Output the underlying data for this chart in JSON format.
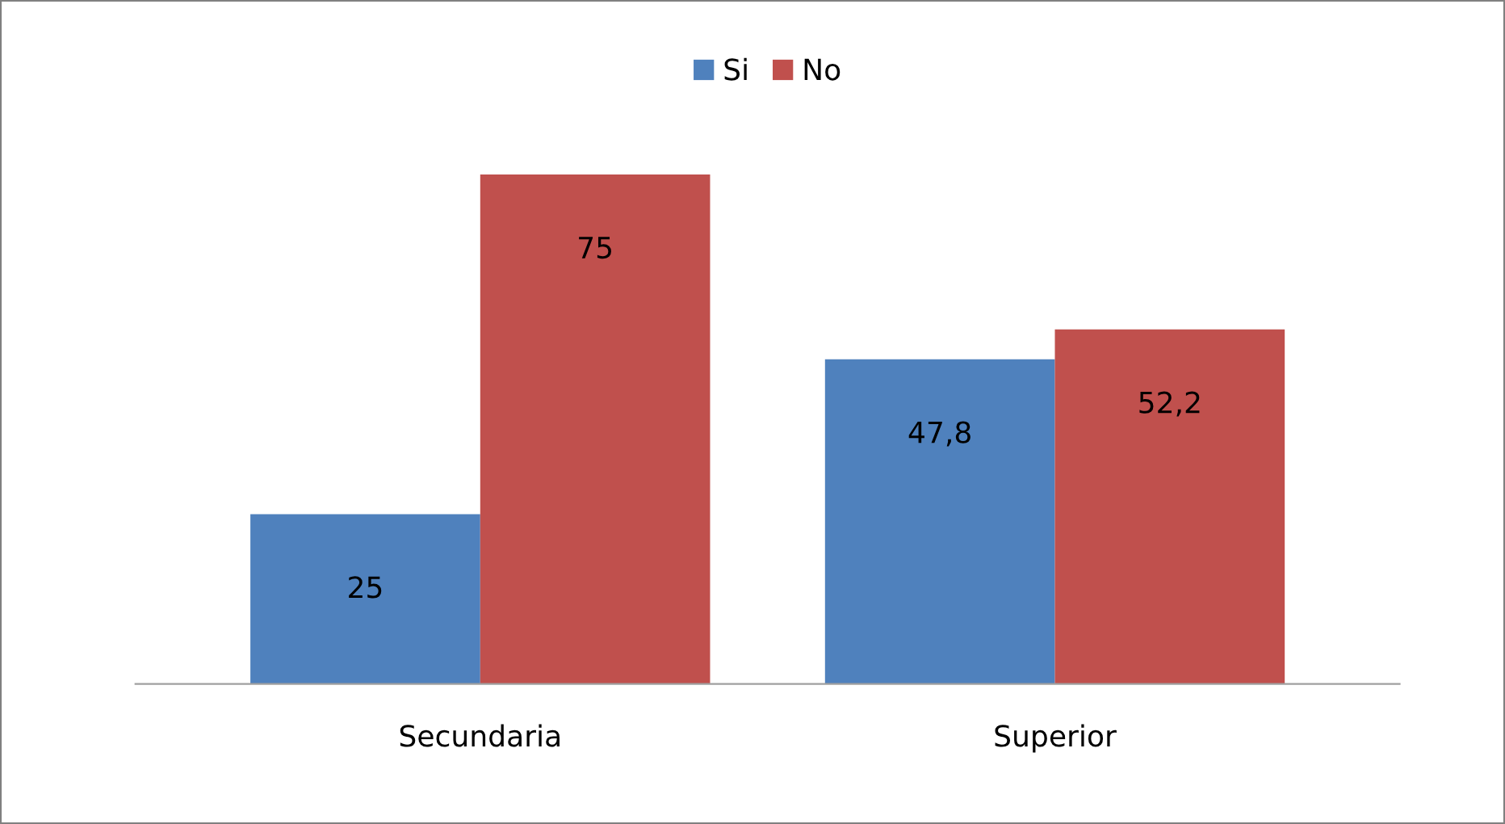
{
  "chart_data": {
    "type": "bar",
    "categories": [
      "Secundaria",
      "Superior"
    ],
    "series": [
      {
        "name": "Si",
        "color": "#4f81bd",
        "values": [
          25,
          47.8
        ],
        "value_labels": [
          "25",
          "47,8"
        ]
      },
      {
        "name": "No",
        "color": "#c0504d",
        "values": [
          75,
          52.2
        ],
        "value_labels": [
          "75",
          "52,2"
        ]
      }
    ],
    "legend": "top",
    "grid": false
  }
}
